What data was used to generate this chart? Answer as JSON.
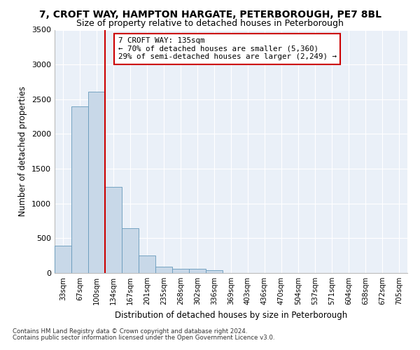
{
  "title1": "7, CROFT WAY, HAMPTON HARGATE, PETERBOROUGH, PE7 8BL",
  "title2": "Size of property relative to detached houses in Peterborough",
  "xlabel": "Distribution of detached houses by size in Peterborough",
  "ylabel": "Number of detached properties",
  "categories": [
    "33sqm",
    "67sqm",
    "100sqm",
    "134sqm",
    "167sqm",
    "201sqm",
    "235sqm",
    "268sqm",
    "302sqm",
    "336sqm",
    "369sqm",
    "403sqm",
    "436sqm",
    "470sqm",
    "504sqm",
    "537sqm",
    "571sqm",
    "604sqm",
    "638sqm",
    "672sqm",
    "705sqm"
  ],
  "values": [
    390,
    2400,
    2610,
    1240,
    640,
    255,
    95,
    65,
    60,
    40,
    0,
    0,
    0,
    0,
    0,
    0,
    0,
    0,
    0,
    0,
    0
  ],
  "bar_color": "#c8d8e8",
  "bar_edge_color": "#6699bb",
  "ylim": [
    0,
    3500
  ],
  "yticks": [
    0,
    500,
    1000,
    1500,
    2000,
    2500,
    3000,
    3500
  ],
  "annotation_text": "7 CROFT WAY: 135sqm\n← 70% of detached houses are smaller (5,360)\n29% of semi-detached houses are larger (2,249) →",
  "footnote1": "Contains HM Land Registry data © Crown copyright and database right 2024.",
  "footnote2": "Contains public sector information licensed under the Open Government Licence v3.0.",
  "plot_bg_color": "#eaf0f8",
  "title1_fontsize": 10,
  "title2_fontsize": 9,
  "annotation_box_color": "#cc0000",
  "red_line_index": 2,
  "bar_width": 1.0
}
